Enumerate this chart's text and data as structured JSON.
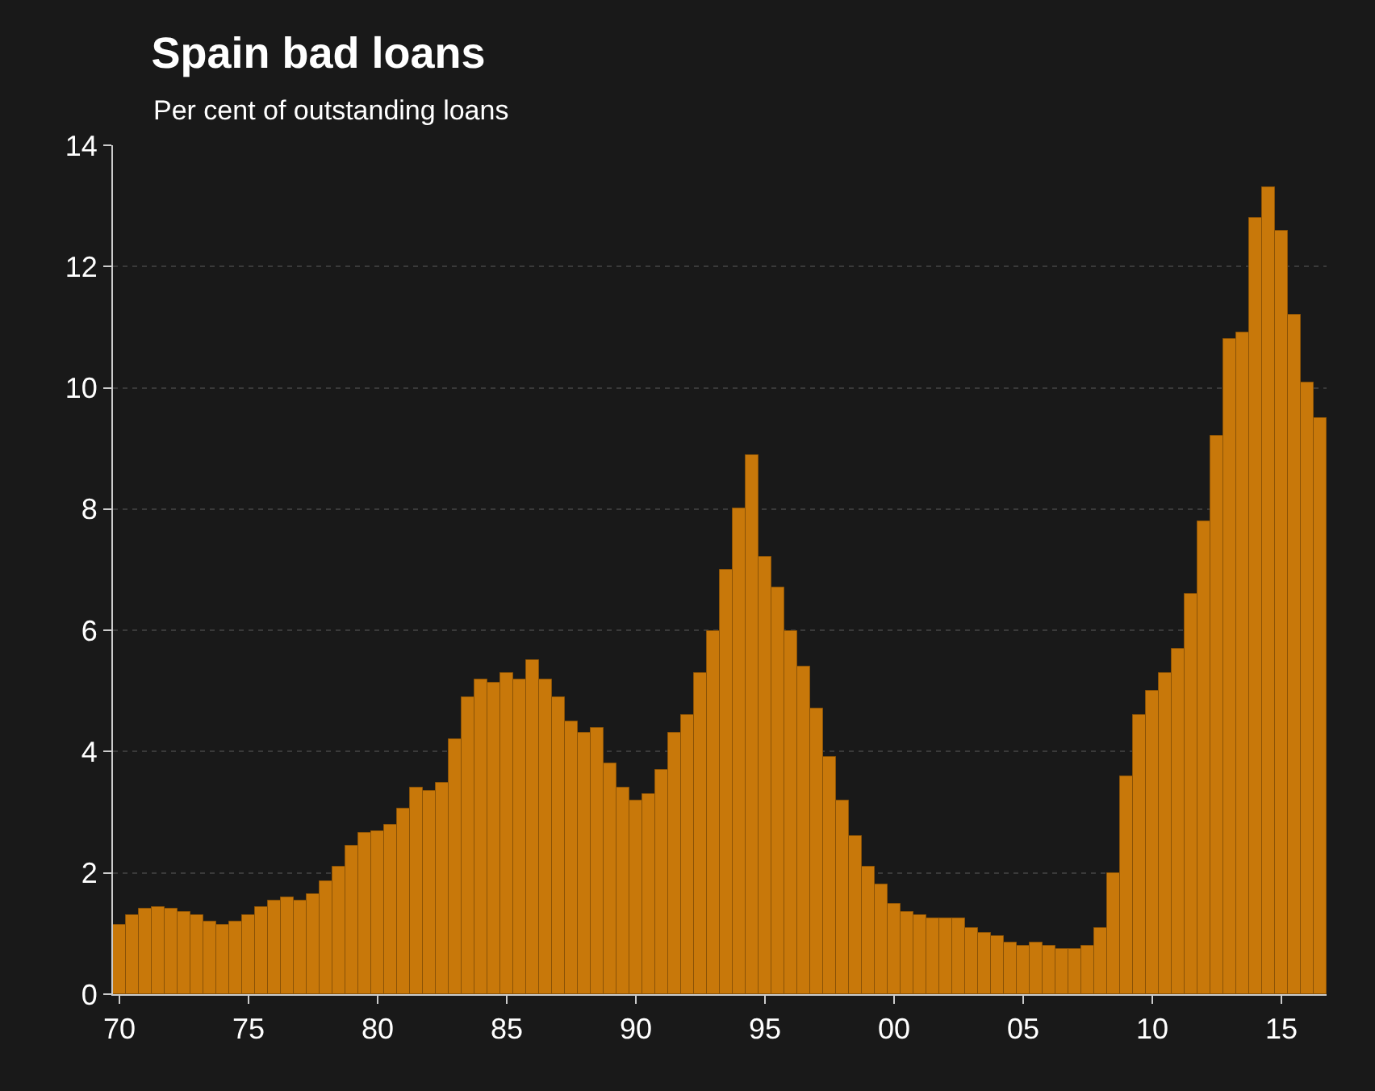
{
  "chart_data": {
    "type": "bar",
    "title": "Spain bad loans",
    "subtitle": "Per cent of outstanding loans",
    "x": [
      1970,
      1970.5,
      1971,
      1971.5,
      1972,
      1972.5,
      1973,
      1973.5,
      1974,
      1974.5,
      1975,
      1975.5,
      1976,
      1976.5,
      1977,
      1977.5,
      1978,
      1978.5,
      1979,
      1979.5,
      1980,
      1980.5,
      1981,
      1981.5,
      1982,
      1982.5,
      1983,
      1983.5,
      1984,
      1984.5,
      1985,
      1985.5,
      1986,
      1986.5,
      1987,
      1987.5,
      1988,
      1988.5,
      1989,
      1989.5,
      1990,
      1990.5,
      1991,
      1991.5,
      1992,
      1992.5,
      1993,
      1993.5,
      1994,
      1994.5,
      1995,
      1995.5,
      1996,
      1996.5,
      1997,
      1997.5,
      1998,
      1998.5,
      1999,
      1999.5,
      2000,
      2000.5,
      2001,
      2001.5,
      2002,
      2002.5,
      2003,
      2003.5,
      2004,
      2004.5,
      2005,
      2005.5,
      2006,
      2006.5,
      2007,
      2007.5,
      2008,
      2008.5,
      2009,
      2009.5,
      2010,
      2010.5,
      2011,
      2011.5,
      2012,
      2012.5,
      2013,
      2013.5,
      2014,
      2014.5,
      2015,
      2015.5,
      2016,
      2016.5
    ],
    "values": [
      1.15,
      1.3,
      1.4,
      1.45,
      1.4,
      1.35,
      1.3,
      1.2,
      1.15,
      1.2,
      1.3,
      1.45,
      1.55,
      1.6,
      1.55,
      1.65,
      1.85,
      2.1,
      2.45,
      2.65,
      2.7,
      2.8,
      3.05,
      3.4,
      3.35,
      3.5,
      4.2,
      4.9,
      5.2,
      5.15,
      5.3,
      5.2,
      5.5,
      5.2,
      4.9,
      4.5,
      4.3,
      4.4,
      3.8,
      3.4,
      3.2,
      3.3,
      3.7,
      4.3,
      4.6,
      5.3,
      6.0,
      7.0,
      8.0,
      8.9,
      7.2,
      6.7,
      6.0,
      5.4,
      4.7,
      3.9,
      3.2,
      2.6,
      2.1,
      1.8,
      1.5,
      1.35,
      1.3,
      1.25,
      1.25,
      1.25,
      1.1,
      1.0,
      0.95,
      0.85,
      0.8,
      0.85,
      0.8,
      0.75,
      0.75,
      0.8,
      1.1,
      2.0,
      3.6,
      4.6,
      5.0,
      5.3,
      5.7,
      6.6,
      7.8,
      9.2,
      10.8,
      10.9,
      12.8,
      13.3,
      12.6,
      11.2,
      10.1,
      9.5
    ],
    "color": "#c8780a",
    "xlim": [
      1969.75,
      2016.75
    ],
    "xticks": [
      {
        "value": 1970,
        "label": "70"
      },
      {
        "value": 1975,
        "label": "75"
      },
      {
        "value": 1980,
        "label": "80"
      },
      {
        "value": 1985,
        "label": "85"
      },
      {
        "value": 1990,
        "label": "90"
      },
      {
        "value": 1995,
        "label": "95"
      },
      {
        "value": 2000,
        "label": "00"
      },
      {
        "value": 2005,
        "label": "05"
      },
      {
        "value": 2010,
        "label": "10"
      },
      {
        "value": 2015,
        "label": "15"
      }
    ],
    "ylim": [
      0,
      14
    ],
    "yticks": [
      0,
      2,
      4,
      6,
      8,
      10,
      12,
      14
    ],
    "grid": "y"
  }
}
